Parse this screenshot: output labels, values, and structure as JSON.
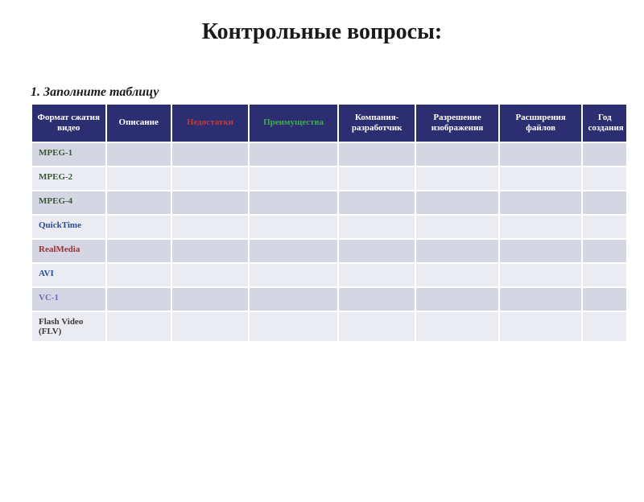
{
  "title": "Контрольные вопросы:",
  "subtitle": "1. Заполните таблицу",
  "table": {
    "header_bg": "#2b2f72",
    "row_odd_bg": "#d4d7e3",
    "row_even_bg": "#ebecf2",
    "border_color": "#ffffff",
    "columns": [
      {
        "label": "Формат сжатия видео",
        "color": "#ffffff"
      },
      {
        "label": "Описание",
        "color": "#ffffff"
      },
      {
        "label": "Недостатки",
        "color": "#c23a3a"
      },
      {
        "label": "Преимущества",
        "color": "#3fae49"
      },
      {
        "label": "Компания-разработчик",
        "color": "#ffffff"
      },
      {
        "label": "Разрешение изображения",
        "color": "#ffffff"
      },
      {
        "label": "Расширения файлов",
        "color": "#ffffff"
      },
      {
        "label": "Год создания",
        "color": "#ffffff"
      }
    ],
    "rows": [
      {
        "format": "MPEG-1",
        "color": "#3a5a3a"
      },
      {
        "format": "MPEG-2",
        "color": "#3a5a3a"
      },
      {
        "format": "MPEG-4",
        "color": "#3a5a3a"
      },
      {
        "format": "QuickTime",
        "color": "#2a4a9a"
      },
      {
        "format": "RealMedia",
        "color": "#a03030"
      },
      {
        "format": "AVI",
        "color": "#2a4a9a"
      },
      {
        "format": "VC-1",
        "color": "#6a6ac0"
      },
      {
        "format": "Flash Video (FLV)",
        "color": "#3a3a3a"
      }
    ]
  }
}
